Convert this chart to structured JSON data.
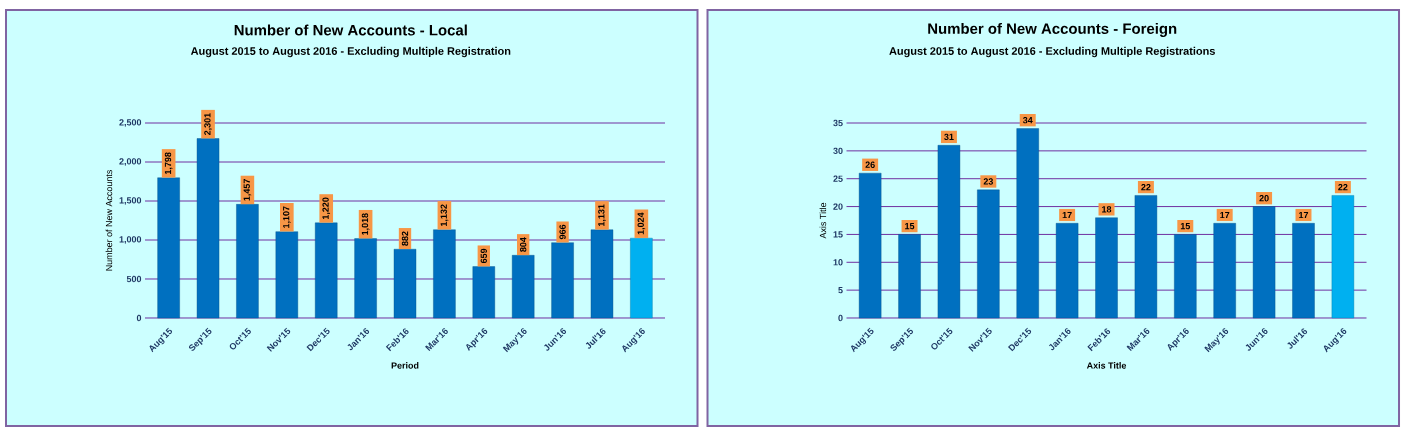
{
  "chart_data": [
    {
      "type": "bar",
      "title": "Number of New Accounts - Local",
      "subtitle": "August 2015 to August 2016 - Excluding Multiple Registration",
      "xlabel": "Period",
      "ylabel": "Number of New Accounts",
      "categories": [
        "Aug'15",
        "Sep'15",
        "Oct'15",
        "Nov'15",
        "Dec'15",
        "Jan'16",
        "Feb'16",
        "Mar'16",
        "Apr'16",
        "May'16",
        "Jun'16",
        "Jul'16",
        "Aug'16"
      ],
      "values": [
        1798,
        2301,
        1457,
        1107,
        1220,
        1018,
        882,
        1132,
        659,
        804,
        966,
        1131,
        1024
      ],
      "value_labels": [
        "1,798",
        "2,301",
        "1,457",
        "1,107",
        "1,220",
        "1,018",
        "882",
        "1,132",
        "659",
        "804",
        "966",
        "1,131",
        "1,024"
      ],
      "colors": [
        "#0070c0",
        "#0070c0",
        "#0070c0",
        "#0070c0",
        "#0070c0",
        "#0070c0",
        "#0070c0",
        "#0070c0",
        "#0070c0",
        "#0070c0",
        "#0070c0",
        "#0070c0",
        "#00b0f0"
      ],
      "ylim": [
        0,
        2500
      ],
      "yticks": [
        0,
        {
          "value": 500,
          "label": "500"
        },
        {
          "value": 1000,
          "label": "1,000"
        },
        {
          "value": 1500,
          "label": "1,500"
        },
        {
          "value": 2000,
          "label": "2,000"
        },
        {
          "value": 2500,
          "label": "2,500"
        }
      ],
      "grid": "y"
    },
    {
      "type": "bar",
      "title": "Number of New Accounts - Foreign",
      "subtitle": "August 2015 to August 2016 - Excluding Multiple Registrations",
      "xlabel": "Axis Title",
      "ylabel": "Axis Title",
      "categories": [
        "Aug'15",
        "Sep'15",
        "Oct'15",
        "Nov'15",
        "Dec'15",
        "Jan'16",
        "Feb'16",
        "Mar'16",
        "Apr'16",
        "May'16",
        "Jun'16",
        "Jul'16",
        "Aug'16"
      ],
      "values": [
        26,
        15,
        31,
        23,
        34,
        17,
        18,
        22,
        15,
        17,
        20,
        17,
        22
      ],
      "data_labels": true,
      "colors": [
        "#0070c0",
        "#0070c0",
        "#0070c0",
        "#0070c0",
        "#0070c0",
        "#0070c0",
        "#0070c0",
        "#0070c0",
        "#0070c0",
        "#0070c0",
        "#0070c0",
        "#0070c0",
        "#00b0f0"
      ],
      "ylim": [
        0,
        35
      ],
      "yticks": [
        0,
        5,
        10,
        15,
        20,
        25,
        30,
        35
      ],
      "grid": "y"
    }
  ]
}
